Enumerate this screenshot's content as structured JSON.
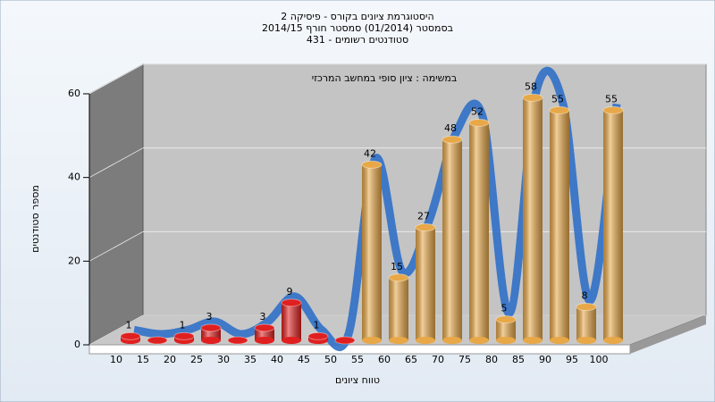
{
  "chart_data": {
    "type": "bar",
    "title": [
      "היסטוגרמת ציונים בקורס - פיסיקה 2",
      "בסמסטר  (01/2014)  סמסטר חורף 2014/15",
      "431 - סטודנטים רשומים"
    ],
    "annotation": "במשימה : ציון סופי במחשב המרכזי",
    "x_label": "טווח ציונים",
    "y_label": "מספר סטודנטים",
    "categories": [
      "10",
      "15",
      "20",
      "25",
      "30",
      "35",
      "40",
      "45",
      "50",
      "55",
      "60",
      "65",
      "70",
      "75",
      "80",
      "85",
      "90",
      "95",
      "100"
    ],
    "values": [
      1,
      0,
      1,
      3,
      0,
      3,
      9,
      1,
      0,
      42,
      15,
      27,
      48,
      52,
      5,
      58,
      55,
      8,
      55
    ],
    "value_labels": [
      "1",
      null,
      "1",
      "3",
      null,
      "3",
      "9",
      "1",
      null,
      "42",
      "15",
      "27",
      "48",
      "52",
      "5",
      "58",
      "55",
      "8",
      "55"
    ],
    "colors": [
      "#e02020",
      "#e02020",
      "#e02020",
      "#e02020",
      "#e02020",
      "#e02020",
      "#e02020",
      "#e02020",
      "#e02020",
      "#e8a848",
      "#e8a848",
      "#e8a848",
      "#e8a848",
      "#e8a848",
      "#e8a848",
      "#e8a848",
      "#e8a848",
      "#e8a848",
      "#e8a848"
    ],
    "line_color": "#3070c8",
    "ylim": [
      0,
      60
    ],
    "yticks": [
      0,
      20,
      40,
      60
    ],
    "grid": true
  }
}
